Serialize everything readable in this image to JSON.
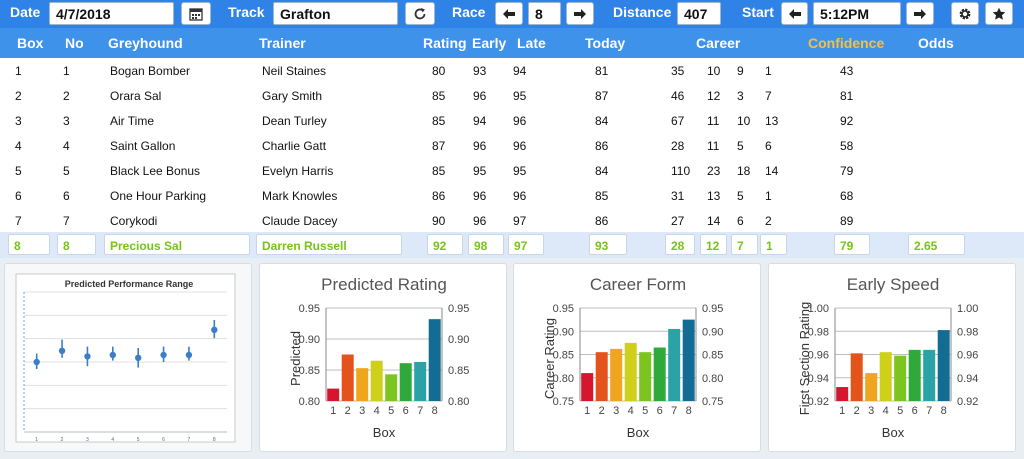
{
  "toolbar": {
    "date_label": "Date",
    "date_value": "4/7/2018",
    "track_label": "Track",
    "track_value": "Grafton",
    "race_label": "Race",
    "race_value": "8",
    "distance_label": "Distance",
    "distance_value": "407",
    "start_label": "Start",
    "start_value": "5:12PM"
  },
  "columns": {
    "box": "Box",
    "no": "No",
    "greyhound": "Greyhound",
    "trainer": "Trainer",
    "rating": "Rating",
    "early": "Early",
    "late": "Late",
    "today": "Today",
    "career": "Career",
    "confidence": "Confidence",
    "odds": "Odds"
  },
  "rows": [
    {
      "box": "1",
      "no": "1",
      "greyhound": "Bogan Bomber",
      "trainer": "Neil Staines",
      "rating": "80",
      "early": "93",
      "late": "94",
      "today": "81",
      "c1": "35",
      "c2": "10",
      "c3": "9",
      "c4": "1",
      "confidence": "43",
      "odds": ""
    },
    {
      "box": "2",
      "no": "2",
      "greyhound": "Orara Sal",
      "trainer": "Gary Smith",
      "rating": "85",
      "early": "96",
      "late": "95",
      "today": "87",
      "c1": "46",
      "c2": "12",
      "c3": "3",
      "c4": "7",
      "confidence": "81",
      "odds": ""
    },
    {
      "box": "3",
      "no": "3",
      "greyhound": "Air Time",
      "trainer": "Dean Turley",
      "rating": "85",
      "early": "94",
      "late": "96",
      "today": "84",
      "c1": "67",
      "c2": "11",
      "c3": "10",
      "c4": "13",
      "confidence": "92",
      "odds": ""
    },
    {
      "box": "4",
      "no": "4",
      "greyhound": "Saint Gallon",
      "trainer": "Charlie Gatt",
      "rating": "87",
      "early": "96",
      "late": "96",
      "today": "86",
      "c1": "28",
      "c2": "11",
      "c3": "5",
      "c4": "6",
      "confidence": "58",
      "odds": ""
    },
    {
      "box": "5",
      "no": "5",
      "greyhound": "Black Lee Bonus",
      "trainer": "Evelyn Harris",
      "rating": "85",
      "early": "95",
      "late": "95",
      "today": "84",
      "c1": "110",
      "c2": "23",
      "c3": "18",
      "c4": "14",
      "confidence": "79",
      "odds": ""
    },
    {
      "box": "6",
      "no": "6",
      "greyhound": "One Hour Parking",
      "trainer": "Mark Knowles",
      "rating": "86",
      "early": "96",
      "late": "96",
      "today": "85",
      "c1": "31",
      "c2": "13",
      "c3": "5",
      "c4": "1",
      "confidence": "68",
      "odds": ""
    },
    {
      "box": "7",
      "no": "7",
      "greyhound": "Corykodi",
      "trainer": "Claude Dacey",
      "rating": "90",
      "early": "96",
      "late": "97",
      "today": "86",
      "c1": "27",
      "c2": "14",
      "c3": "6",
      "c4": "2",
      "confidence": "89",
      "odds": ""
    }
  ],
  "prediction": {
    "box": "8",
    "no": "8",
    "greyhound": "Precious Sal",
    "trainer": "Darren Russell",
    "rating": "92",
    "early": "98",
    "late": "97",
    "today": "93",
    "c1": "28",
    "c2": "12",
    "c3": "7",
    "c4": "1",
    "confidence": "79",
    "odds": "2.65"
  },
  "colors": {
    "header": "#2f83e6",
    "accent_green": "#78c31a",
    "confidence_header": "#f5c043"
  },
  "icons": [
    "calendar-icon",
    "refresh-icon",
    "arrow-left-icon",
    "arrow-right-icon",
    "gear-icon",
    "star-icon"
  ],
  "chart_data": [
    {
      "type": "scatter",
      "title": "Predicted Performance Range",
      "x": [
        "1",
        "2",
        "3",
        "4",
        "5",
        "6",
        "7",
        "8"
      ],
      "values": [
        0.5,
        0.58,
        0.54,
        0.55,
        0.53,
        0.55,
        0.55,
        0.73
      ],
      "low": [
        0.45,
        0.53,
        0.47,
        0.51,
        0.46,
        0.5,
        0.51,
        0.67
      ],
      "high": [
        0.56,
        0.66,
        0.61,
        0.61,
        0.6,
        0.61,
        0.61,
        0.8
      ],
      "ylim": [
        0,
        1
      ],
      "grid": true
    },
    {
      "type": "bar",
      "title": "Predicted Rating",
      "categories": [
        "1",
        "2",
        "3",
        "4",
        "5",
        "6",
        "7",
        "8"
      ],
      "values": [
        0.82,
        0.875,
        0.853,
        0.865,
        0.843,
        0.861,
        0.863,
        0.932
      ],
      "xlabel": "Box",
      "ylabel": "Predicted",
      "ylim": [
        0.8,
        0.95
      ],
      "yticks": [
        "0.80",
        "0.85",
        "0.90",
        "0.95"
      ],
      "grid": true
    },
    {
      "type": "bar",
      "title": "Career Form",
      "categories": [
        "1",
        "2",
        "3",
        "4",
        "5",
        "6",
        "7",
        "8"
      ],
      "values": [
        0.81,
        0.855,
        0.862,
        0.875,
        0.855,
        0.865,
        0.905,
        0.925
      ],
      "xlabel": "Box",
      "ylabel": "Career Rating",
      "ylim": [
        0.75,
        0.95
      ],
      "yticks": [
        "0.75",
        "0.80",
        "0.85",
        "0.90",
        "0.95"
      ],
      "grid": true
    },
    {
      "type": "bar",
      "title": "Early Speed",
      "categories": [
        "1",
        "2",
        "3",
        "4",
        "5",
        "6",
        "7",
        "8"
      ],
      "values": [
        0.932,
        0.961,
        0.944,
        0.962,
        0.959,
        0.964,
        0.964,
        0.981
      ],
      "xlabel": "Box",
      "ylabel": "First Section Rating",
      "ylim": [
        0.92,
        1.0
      ],
      "yticks": [
        "0.92",
        "0.94",
        "0.96",
        "0.98",
        "1.00"
      ],
      "grid": true
    }
  ]
}
